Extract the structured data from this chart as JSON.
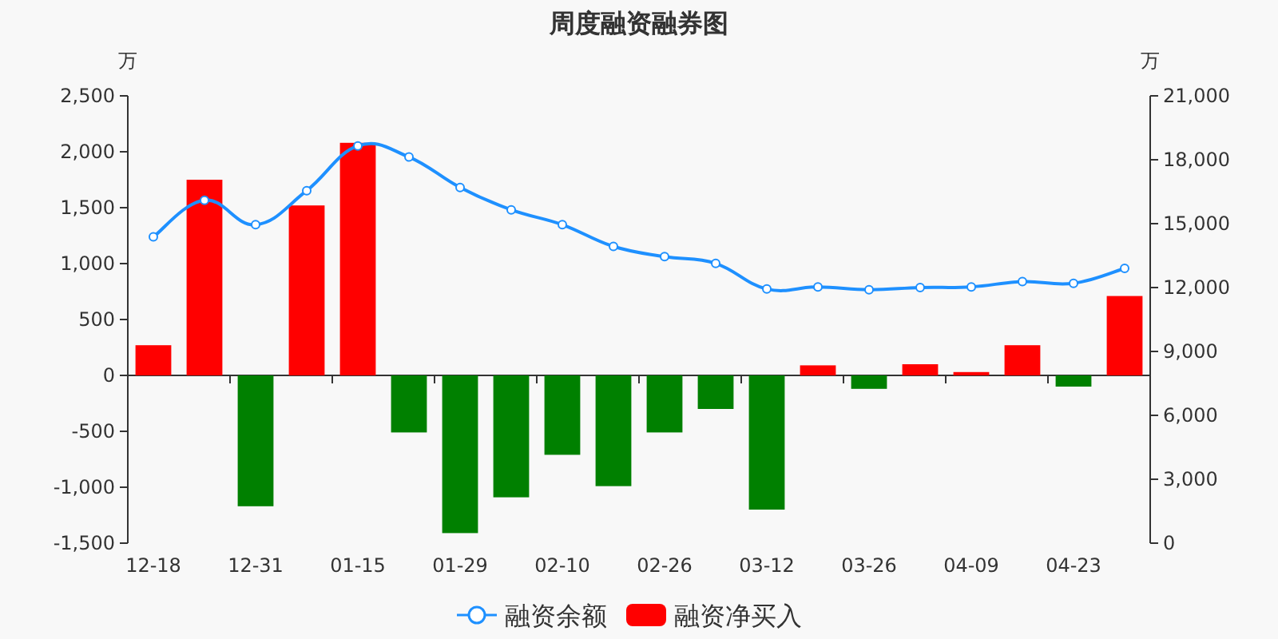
{
  "chart_data": {
    "type": "bar",
    "title": "周度融资融券图",
    "ylabel": "万",
    "y2label": "万",
    "categories": [
      "12-18",
      null,
      "12-31",
      null,
      "01-15",
      null,
      "01-29",
      null,
      "02-10",
      null,
      "02-26",
      null,
      "03-12",
      null,
      "03-26",
      null,
      "04-09",
      null,
      "04-23",
      null
    ],
    "series": [
      {
        "name": "融资余额",
        "type": "line",
        "axis": "y2",
        "color": "#1e90ff",
        "values": [
          14380,
          16100,
          14950,
          16550,
          18650,
          18130,
          16700,
          15650,
          14950,
          13930,
          13450,
          13130,
          11930,
          12030,
          11900,
          12000,
          12030,
          12280,
          12200,
          12900
        ]
      },
      {
        "name": "融资净买入",
        "color": "#ff0000",
        "colors": [
          "#ff0000",
          "#ff0000",
          "#008000",
          "#ff0000",
          "#ff0000",
          "#008000",
          "#008000",
          "#008000",
          "#008000",
          "#008000",
          "#008000",
          "#008000",
          "#008000",
          "#ff0000",
          "#008000",
          "#ff0000",
          "#ff0000",
          "#ff0000",
          "#008000",
          "#ff0000"
        ],
        "values": [
          270,
          1750,
          -1170,
          1520,
          2080,
          -510,
          -1410,
          -1090,
          -710,
          -990,
          -510,
          -300,
          -1200,
          90,
          -120,
          100,
          30,
          270,
          -100,
          710
        ]
      }
    ],
    "marker": "circle",
    "legend": "bottom",
    "ylim": [
      -1500,
      2500
    ],
    "yticks": [
      {
        "value": -1500,
        "label": "-1,500"
      },
      {
        "value": -1000,
        "label": "-1,000"
      },
      -500,
      0,
      500,
      {
        "value": 1000,
        "label": "1,000"
      },
      {
        "value": 1500,
        "label": "1,500"
      },
      {
        "value": 2000,
        "label": "2,000"
      },
      {
        "value": 2500,
        "label": "2,500"
      }
    ],
    "y2lim": [
      0,
      21000
    ],
    "y2ticks": [
      0,
      {
        "value": 3000,
        "label": "3,000"
      },
      {
        "value": 6000,
        "label": "6,000"
      },
      {
        "value": 9000,
        "label": "9,000"
      },
      {
        "value": 12000,
        "label": "12,000"
      },
      {
        "value": 15000,
        "label": "15,000"
      },
      {
        "value": 18000,
        "label": "18,000"
      },
      {
        "value": 21000,
        "label": "21,000"
      }
    ]
  }
}
